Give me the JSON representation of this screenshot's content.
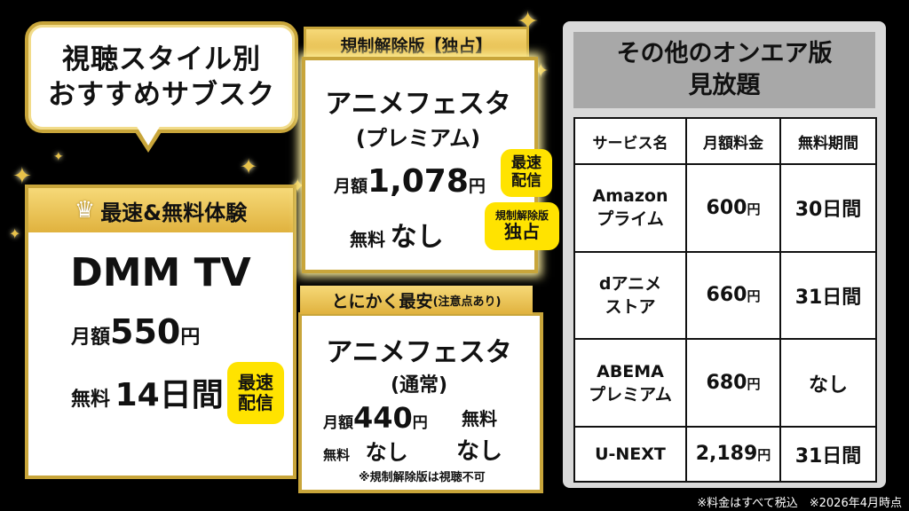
{
  "title": {
    "line1": "視聴スタイル別",
    "line2": "おすすめサブスク"
  },
  "left": {
    "header": "最速&無料体験",
    "service": "DMM TV",
    "price_label": "月額",
    "price_value": "550",
    "price_unit": "円",
    "trial_label": "無料",
    "trial_value": "14日間",
    "badge_line1": "最速",
    "badge_line2": "配信"
  },
  "mid_top": {
    "tab": "規制解除版【独占】",
    "service_line1": "アニメフェスタ",
    "service_line2": "(プレミアム)",
    "price_label": "月額",
    "price_value": "1,078",
    "price_unit": "円",
    "trial_label": "無料",
    "trial_value": "なし",
    "badge1_line1": "最速",
    "badge1_line2": "配信",
    "badge2_line1": "規制解除版",
    "badge2_line2": "独占"
  },
  "mid_bot": {
    "tab_main": "とにかく最安",
    "tab_note": "(注意点あり)",
    "service_line1": "アニメフェスタ",
    "service_line2": "(通常)",
    "price_label": "月額",
    "price_value": "440",
    "price_unit": "円",
    "trial_label": "無料",
    "trial_value": "なし",
    "right_label": "無料",
    "right_value": "なし",
    "note": "※規制解除版は視聴不可"
  },
  "panel": {
    "title_line1": "その他のオンエア版",
    "title_line2": "見放題",
    "headers": [
      "サービス名",
      "月額料金",
      "無料期間"
    ],
    "rows": [
      {
        "name1": "Amazon",
        "name2": "プライム",
        "price": "600",
        "unit": "円",
        "trial": "30日間"
      },
      {
        "name1": "dアニメ",
        "name2": "ストア",
        "price": "660",
        "unit": "円",
        "trial": "31日間"
      },
      {
        "name1": "ABEMA",
        "name2": "プレミアム",
        "price": "680",
        "unit": "円",
        "trial": "なし"
      },
      {
        "name1": "U-NEXT",
        "name2": "",
        "price": "2,189",
        "unit": "円",
        "trial": "31日間"
      }
    ]
  },
  "footnote": "※料金はすべて税込　※2026年4月時点"
}
